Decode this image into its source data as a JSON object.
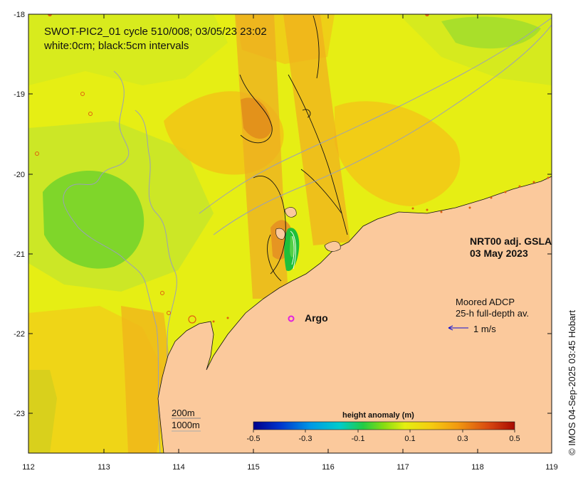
{
  "map": {
    "title_line1": "SWOT-PIC2_01 cycle 510/008; 03/05/23 23:02",
    "title_line2": "white:0cm; black:5cm intervals",
    "product_line1": "NRT00 adj. GSLA",
    "product_line2": "03 May 2023",
    "adcp_line1": "Moored ADCP",
    "adcp_line2": "25-h full-depth av.",
    "vector_label": "1 m/s",
    "argo_label": "Argo",
    "isobath1": "200m",
    "isobath2": "1000m",
    "credit": "© IMOS 04-Sep-2025 03:45 Hobart",
    "colors": {
      "land": "#fbc99c",
      "ocean": "#e7ef12",
      "argo": "#e020e0",
      "vector": "#1010d0"
    }
  },
  "axes": {
    "x_ticks": [
      "112",
      "113",
      "114",
      "115",
      "116",
      "117",
      "118",
      "119"
    ],
    "y_ticks": [
      "-18",
      "-19",
      "-20",
      "-21",
      "-22",
      "-23"
    ]
  },
  "colorbar": {
    "title": "height anomaly (m)",
    "tick_labels": [
      "-0.5",
      "-0.3",
      "-0.1",
      "0.1",
      "0.3",
      "0.5"
    ],
    "range": [
      -0.5,
      0.5
    ]
  }
}
